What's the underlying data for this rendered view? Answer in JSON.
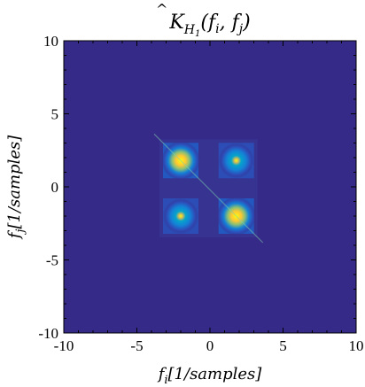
{
  "chart_data": {
    "type": "heatmap",
    "title": "K̂_H₁(f_i, f_j)",
    "title_parts": {
      "K": "K",
      "sub_H": "H",
      "sub_1": "1",
      "args": "(f",
      "i": "i",
      "comma": ", f",
      "j": "j",
      "close": ")"
    },
    "xlabel": {
      "f": "f",
      "sub": "i",
      "unit": "[1/samples]"
    },
    "ylabel": {
      "f": "f",
      "sub": "j",
      "unit": "[1/samples]"
    },
    "xlim": [
      -10,
      10
    ],
    "ylim": [
      -10,
      10
    ],
    "x_ticks": [
      -10,
      -5,
      0,
      5,
      10
    ],
    "y_ticks": [
      -10,
      -5,
      0,
      5,
      10
    ],
    "x_tick_labels": [
      "-10",
      "-5",
      "0",
      "5",
      "10"
    ],
    "y_tick_labels": [
      "-10",
      "-5",
      "0",
      "5",
      "10"
    ],
    "colormap": [
      "#352a87",
      "#0f5cdd",
      "#1481d6",
      "#06a4ca",
      "#2eb7a4",
      "#87bf77",
      "#d1bb59",
      "#fec832",
      "#f9fb0e"
    ],
    "background_color": "#352a87",
    "blobs": [
      {
        "x": -2.0,
        "y": 1.8,
        "intensity": 1.0
      },
      {
        "x": 1.8,
        "y": 1.8,
        "intensity": 0.55
      },
      {
        "x": -2.0,
        "y": -2.0,
        "intensity": 0.55
      },
      {
        "x": 1.8,
        "y": -2.0,
        "intensity": 1.0
      }
    ]
  }
}
